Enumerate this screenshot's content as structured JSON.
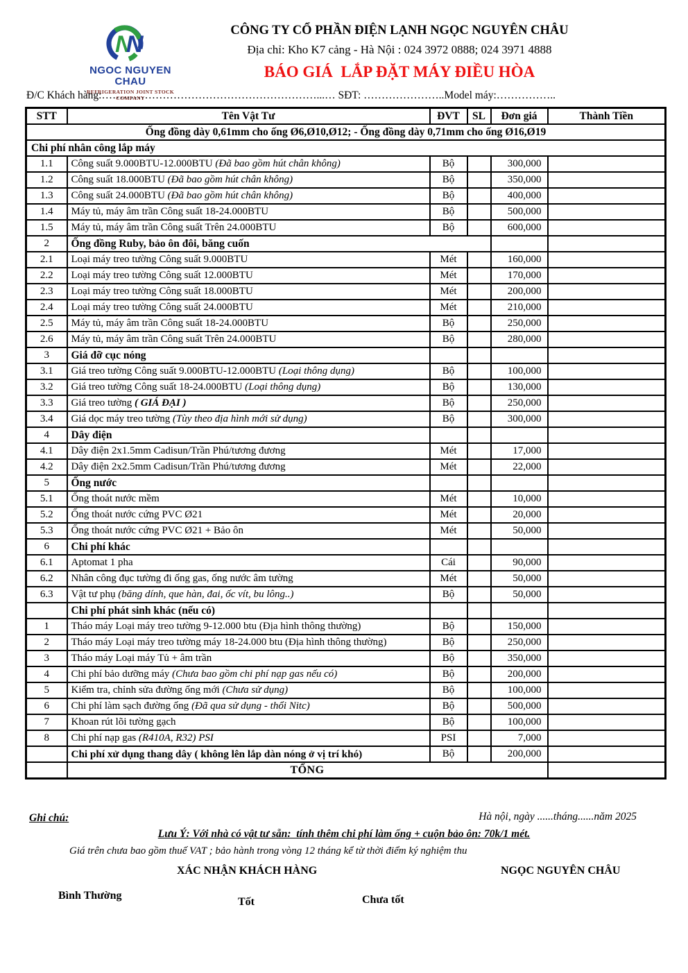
{
  "header": {
    "company": "CÔNG TY CỔ PHẦN ĐIỆN LẠNH NGỌC NGUYÊN CHÂU",
    "address": "Địa chỉ: Kho K7 cảng - Hà Nội : 024 3972 0888; 024 3971 4888",
    "doc_title": "BÁO GIÁ  LẮP ĐẶT MÁY ĐIỀU HÒA",
    "logo": {
      "name": "NGOC NGUYEN CHAU",
      "subtitle": "REFRIGERATION JOINT STOCK COMPANY",
      "monogram": "N",
      "colors": {
        "blue": "#21409a",
        "green": "#2f9e41",
        "maroon": "#7b2d26",
        "title_red": "#ee1111"
      }
    }
  },
  "customer_line": "Đ/C Khách hàng:……………………………………………………...… SĐT: …………………..Model máy:……………..",
  "table": {
    "columns": [
      "STT",
      "Tên Vật Tư",
      "ĐVT",
      "SL",
      "Đơn giá",
      "Thành Tiền"
    ],
    "rows": [
      {
        "kind": "band",
        "text": "Ống đồng dày 0,61mm cho ống Ø6,Ø10,Ø12;  - Ống đồng dày 0,71mm cho ống Ø16,Ø19"
      },
      {
        "kind": "section_full",
        "text": "Chi phí nhân công lắp máy"
      },
      {
        "kind": "item",
        "stt": "1.1",
        "name": "Công suất 9.000BTU-12.000BTU ",
        "note": "(Đã bao gồm hút chân không)",
        "dvt": "Bộ",
        "sl": "",
        "don_gia": "300,000",
        "thanh_tien": ""
      },
      {
        "kind": "item",
        "stt": "1.2",
        "name": "Công suất 18.000BTU ",
        "note": "(Đã bao gồm hút chân không)",
        "dvt": "Bộ",
        "sl": "",
        "don_gia": "350,000",
        "thanh_tien": ""
      },
      {
        "kind": "item",
        "stt": "1.3",
        "name": "Công suất 24.000BTU ",
        "note": "(Đã bao gồm hút chân không)",
        "dvt": "Bộ",
        "sl": "",
        "don_gia": "400,000",
        "thanh_tien": ""
      },
      {
        "kind": "item",
        "stt": "1.4",
        "name": "Máy tủ, máy âm trần Công suất 18-24.000BTU",
        "dvt": "Bộ",
        "sl": "",
        "don_gia": "500,000",
        "thanh_tien": ""
      },
      {
        "kind": "item",
        "stt": "1.5",
        "name": "Máy tủ, máy âm trần Công suất Trên 24.000BTU",
        "dvt": "Bộ",
        "sl": "",
        "don_gia": "600,000",
        "thanh_tien": ""
      },
      {
        "kind": "section",
        "stt": "2",
        "name": "Ống đồng Ruby, bảo ôn đôi, băng cuốn",
        "merge": true
      },
      {
        "kind": "item",
        "stt": "2.1",
        "name": "Loại máy treo tường Công suất 9.000BTU",
        "dvt": "Mét",
        "sl": "",
        "don_gia": "160,000",
        "thanh_tien": ""
      },
      {
        "kind": "item",
        "stt": "2.2",
        "name": "Loại máy treo tường Công suất 12.000BTU",
        "dvt": "Mét",
        "sl": "",
        "don_gia": "170,000",
        "thanh_tien": ""
      },
      {
        "kind": "item",
        "stt": "2.3",
        "name": "Loại máy treo tường Công suất 18.000BTU",
        "dvt": "Mét",
        "sl": "",
        "don_gia": "200,000",
        "thanh_tien": ""
      },
      {
        "kind": "item",
        "stt": "2.4",
        "name": "Loại máy treo tường Công suất 24.000BTU",
        "dvt": "Mét",
        "sl": "",
        "don_gia": "210,000",
        "thanh_tien": ""
      },
      {
        "kind": "item",
        "stt": "2.5",
        "name": "Máy tủ, máy âm trần Công suất 18-24.000BTU",
        "dvt": "Bộ",
        "sl": "",
        "don_gia": "250,000",
        "thanh_tien": ""
      },
      {
        "kind": "item",
        "stt": "2.6",
        "name": "Máy tủ, máy âm trần Công suất Trên 24.000BTU",
        "dvt": "Bộ",
        "sl": "",
        "don_gia": "280,000",
        "thanh_tien": ""
      },
      {
        "kind": "section",
        "stt": "3",
        "name": "Giá đỡ cục nóng"
      },
      {
        "kind": "item",
        "stt": "3.1",
        "name": "Giá treo tường Công suất 9.000BTU-12.000BTU ",
        "note": "(Loại thông dụng)",
        "dvt": "Bộ",
        "sl": "",
        "don_gia": "100,000",
        "thanh_tien": ""
      },
      {
        "kind": "item",
        "stt": "3.2",
        "name": "Giá treo tường Công suất 18-24.000BTU ",
        "note": "(Loại thông dụng)",
        "dvt": "Bộ",
        "sl": "",
        "don_gia": "130,000",
        "thanh_tien": ""
      },
      {
        "kind": "item",
        "stt": "3.3",
        "name": "Giá treo tường ",
        "note": "( GIÁ ĐẠI )",
        "note_bold": true,
        "dvt": "Bộ",
        "sl": "",
        "don_gia": "250,000",
        "thanh_tien": ""
      },
      {
        "kind": "item",
        "stt": "3.4",
        "name": "Giá dọc máy treo tường ",
        "note": "(Tùy theo địa hình mới sử dụng)",
        "dvt": "Bộ",
        "sl": "",
        "don_gia": "300,000",
        "thanh_tien": ""
      },
      {
        "kind": "section",
        "stt": "4",
        "name": "Dây điện"
      },
      {
        "kind": "item",
        "stt": "4.1",
        "name": "Dây điện 2x1.5mm Cadisun/Trần Phú/tương đương",
        "dvt": "Mét",
        "sl": "",
        "don_gia": "17,000",
        "thanh_tien": ""
      },
      {
        "kind": "item",
        "stt": "4.2",
        "name": "Dây điện 2x2.5mm Cadisun/Trần Phú/tương đương",
        "dvt": "Mét",
        "sl": "",
        "don_gia": "22,000",
        "thanh_tien": ""
      },
      {
        "kind": "section",
        "stt": "5",
        "name": "Ống nước"
      },
      {
        "kind": "item",
        "stt": "5.1",
        "name": "Ống thoát nước mềm",
        "dvt": "Mét",
        "sl": "",
        "don_gia": "10,000",
        "thanh_tien": ""
      },
      {
        "kind": "item",
        "stt": "5.2",
        "name": "Ống thoát nước cứng PVC Ø21",
        "dvt": "Mét",
        "sl": "",
        "don_gia": "20,000",
        "thanh_tien": ""
      },
      {
        "kind": "item",
        "stt": "5.3",
        "name": "Ống thoát nước cứng PVC Ø21 + Bảo ôn",
        "dvt": "Mét",
        "sl": "",
        "don_gia": "50,000",
        "thanh_tien": ""
      },
      {
        "kind": "section",
        "stt": "6",
        "name": "Chi phí khác"
      },
      {
        "kind": "item",
        "stt": "6.1",
        "name": "Aptomat 1 pha",
        "dvt": "Cái",
        "sl": "",
        "don_gia": "90,000",
        "thanh_tien": ""
      },
      {
        "kind": "item",
        "stt": "6.2",
        "name": "Nhân công đục tường đi ống gas, ống nước âm tường",
        "dvt": "Mét",
        "sl": "",
        "don_gia": "50,000",
        "thanh_tien": ""
      },
      {
        "kind": "item",
        "stt": "6.3",
        "name": "Vật tư phụ ",
        "note": "(băng dính, que hàn, đai, ốc vít, bu lông..)",
        "dvt": "Bộ",
        "sl": "",
        "don_gia": "50,000",
        "thanh_tien": ""
      },
      {
        "kind": "section",
        "stt": "",
        "name": "Chi phí phát sinh khác (nếu có)"
      },
      {
        "kind": "item",
        "stt": "1",
        "name": "Tháo máy Loại máy treo tường 9-12.000  btu (Địa hình thông thường)",
        "dvt": "Bộ",
        "sl": "",
        "don_gia": "150,000",
        "thanh_tien": ""
      },
      {
        "kind": "item",
        "stt": "2",
        "name": "Tháo máy Loại máy treo tường máy 18-24.000 btu (Địa hình thông thường)",
        "dvt": "Bộ",
        "sl": "",
        "don_gia": "250,000",
        "thanh_tien": ""
      },
      {
        "kind": "item",
        "stt": "3",
        "name": "Tháo máy Loại máy Tủ + âm trần",
        "dvt": "Bộ",
        "sl": "",
        "don_gia": "350,000",
        "thanh_tien": ""
      },
      {
        "kind": "item",
        "stt": "4",
        "name": "Chi phí bảo dưỡng máy ",
        "note": "(Chưa bao gồm chi phí nạp gas nếu có)",
        "dvt": "Bộ",
        "sl": "",
        "don_gia": "200,000",
        "thanh_tien": ""
      },
      {
        "kind": "item",
        "stt": "5",
        "name": "Kiểm tra, chỉnh sửa đường ống mới ",
        "note": "(Chưa sử dụng)",
        "dvt": "Bộ",
        "sl": "",
        "don_gia": "100,000",
        "thanh_tien": ""
      },
      {
        "kind": "item",
        "stt": "6",
        "name": "Chi phí làm sạch đường ống ",
        "note": "(Đã qua sử dụng - thổi Nitc)",
        "dvt": "Bộ",
        "sl": "",
        "don_gia": "500,000",
        "thanh_tien": ""
      },
      {
        "kind": "item",
        "stt": "7",
        "name": "Khoan rút lõi tường gạch",
        "dvt": "Bộ",
        "sl": "",
        "don_gia": "100,000",
        "thanh_tien": ""
      },
      {
        "kind": "item",
        "stt": "8",
        "name": "Chi phí nạp gas ",
        "note": "(R410A, R32) PSI",
        "dvt": "PSI",
        "sl": "",
        "don_gia": "7,000",
        "thanh_tien": ""
      },
      {
        "kind": "item",
        "stt": "",
        "name": "Chi phí xử dụng thang dây ( không lên lắp dàn nóng ở vị trí khó)",
        "name_bold": true,
        "dvt": "Bộ",
        "sl": "",
        "don_gia": "200,000",
        "thanh_tien": ""
      },
      {
        "kind": "total",
        "text": "TỔNG",
        "thanh_tien": ""
      }
    ]
  },
  "footer": {
    "ghi_chu": "Ghi chú:",
    "date_line": "Hà nội, ngày ......tháng......năm 2025",
    "luu_y": "Lưu Ý: Với nhà có vật tư sẵn:  tính thêm chi phí làm ống + cuộn bảo ôn: 70k/1 mét.",
    "vat_note": "Giá trên chưa bao gồm thuế VAT ; bảo hành trong vòng 12 tháng kể từ thời điểm ký nghiệm thu",
    "confirm_customer": "XÁC NHẬN KHÁCH HÀNG",
    "confirm_company": "NGỌC NGUYÊN CHÂU",
    "ratings": [
      "Bình Thường",
      "Tốt",
      "Chưa tốt"
    ]
  }
}
